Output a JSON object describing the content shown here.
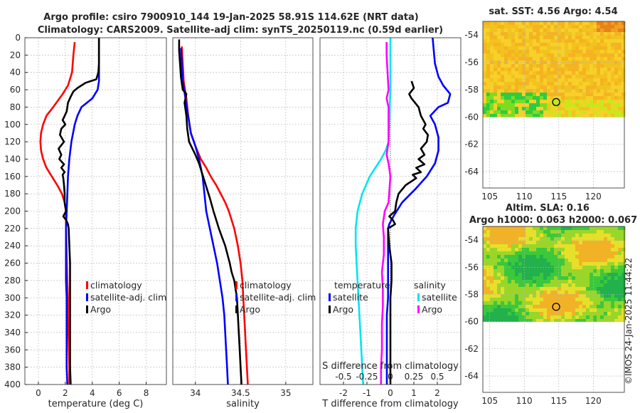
{
  "colors": {
    "climatology": "#ff0000",
    "satellite": "#0000ff",
    "argo": "#000000",
    "sal_satellite": "#00e5ee",
    "sal_argo": "#ff00ff",
    "axis": "#262626",
    "grid": "#b4b4b4"
  },
  "title": {
    "line1": "Argo profile: csiro 7900910_144 19-Jan-2025 58.91S 114.62E (NRT data)",
    "line2": "Climatology: CARS2009. Satellite-adj clim: synTS_20250119.nc (0.59d earlier)"
  },
  "watermark": "©IMOS 24-Jan-2025 11:44:22",
  "chart_data": [
    {
      "id": "temperature",
      "type": "line",
      "xlabel": "temperature (deg C)",
      "xlim": [
        -1,
        9.5
      ],
      "xticks": [
        0,
        2,
        4,
        6,
        8
      ],
      "xticklabels": [
        "0",
        "2",
        "4",
        "6",
        "8"
      ],
      "ylim": [
        0,
        400
      ],
      "yticks": [
        0,
        20,
        40,
        60,
        80,
        100,
        120,
        140,
        160,
        180,
        200,
        220,
        240,
        260,
        280,
        300,
        320,
        340,
        360,
        380,
        400
      ],
      "yticklabels": [
        "0",
        "20",
        "40",
        "60",
        "80",
        "100",
        "120",
        "140",
        "160",
        "180",
        "200",
        "220",
        "240",
        "260",
        "280",
        "300",
        "320",
        "340",
        "360",
        "380",
        "400"
      ],
      "legend": [
        "climatology",
        "satellite-adj. clim",
        "Argo"
      ],
      "series": [
        {
          "name": "climatology",
          "color": "#ff0000",
          "depth": [
            5,
            20,
            40,
            55,
            65,
            80,
            90,
            100,
            110,
            120,
            130,
            140,
            150,
            160,
            170,
            180,
            190,
            200,
            220,
            250,
            280,
            300,
            320,
            350,
            380,
            400
          ],
          "x": [
            2.7,
            2.6,
            2.5,
            2.2,
            1.8,
            1.1,
            0.6,
            0.35,
            0.2,
            0.15,
            0.2,
            0.35,
            0.6,
            1.0,
            1.4,
            1.75,
            1.95,
            2.05,
            2.05,
            2.1,
            2.15,
            2.2,
            2.2,
            2.25,
            2.3,
            2.3
          ]
        },
        {
          "name": "satellite-adj. clim",
          "color": "#0000ff",
          "depth": [
            0,
            10,
            20,
            30,
            40,
            50,
            60,
            70,
            75,
            80,
            90,
            100,
            120,
            140,
            160,
            180,
            200,
            220,
            240,
            260,
            280,
            300,
            320,
            350,
            380,
            400
          ],
          "x": [
            4.5,
            4.5,
            4.5,
            4.5,
            4.5,
            4.5,
            4.4,
            4.0,
            3.6,
            3.2,
            2.9,
            2.7,
            2.45,
            2.3,
            2.2,
            2.15,
            2.1,
            2.05,
            2.05,
            2.05,
            2.05,
            2.1,
            2.1,
            2.1,
            2.1,
            2.15
          ]
        },
        {
          "name": "Argo",
          "color": "#000000",
          "depth": [
            0,
            10,
            20,
            30,
            40,
            48,
            52,
            58,
            62,
            68,
            75,
            85,
            95,
            100,
            105,
            112,
            120,
            128,
            135,
            140,
            146,
            150,
            155,
            158,
            162,
            170,
            180,
            190,
            200,
            206,
            210,
            215,
            220,
            240,
            260,
            280,
            300,
            320,
            340,
            360,
            380,
            400
          ],
          "x": [
            4.5,
            4.5,
            4.5,
            4.5,
            4.45,
            4.3,
            3.5,
            2.9,
            2.6,
            2.4,
            2.2,
            2.1,
            1.8,
            2.0,
            1.7,
            1.6,
            1.9,
            1.5,
            1.7,
            1.55,
            1.9,
            1.7,
            1.95,
            1.8,
            1.85,
            1.9,
            1.95,
            1.95,
            2.05,
            1.85,
            2.05,
            2.2,
            2.25,
            2.3,
            2.35,
            2.35,
            2.35,
            2.35,
            2.35,
            2.35,
            2.35,
            2.4
          ]
        }
      ]
    },
    {
      "id": "salinity",
      "type": "line",
      "xlabel": "salinity",
      "xlim": [
        33.75,
        35.3
      ],
      "xticks": [
        34,
        34.5,
        35
      ],
      "xticklabels": [
        "34",
        "34.5",
        "35"
      ],
      "ylim": [
        0,
        400
      ],
      "legend": [
        "climatology",
        "satellite-adj. clim",
        "Argo"
      ],
      "series": [
        {
          "name": "climatology",
          "color": "#ff0000",
          "depth": [
            10,
            30,
            50,
            70,
            90,
            110,
            125,
            140,
            150,
            160,
            170,
            180,
            190,
            200,
            220,
            240,
            260,
            280,
            300,
            320,
            340,
            360,
            380,
            400
          ],
          "x": [
            33.85,
            33.86,
            33.87,
            33.9,
            33.92,
            33.95,
            34.0,
            34.06,
            34.12,
            34.17,
            34.23,
            34.28,
            34.33,
            34.37,
            34.43,
            34.47,
            34.5,
            34.52,
            34.53,
            34.54,
            34.55,
            34.56,
            34.57,
            34.58
          ]
        },
        {
          "name": "satellite-adj. clim",
          "color": "#0000ff",
          "depth": [
            12,
            30,
            50,
            70,
            90,
            110,
            125,
            140,
            160,
            180,
            200,
            220,
            240,
            260,
            280,
            300,
            320,
            340,
            360,
            380,
            400
          ],
          "x": [
            33.84,
            33.85,
            33.86,
            33.89,
            33.92,
            33.95,
            34.0,
            34.04,
            34.08,
            34.1,
            34.12,
            34.16,
            34.2,
            34.24,
            34.27,
            34.3,
            34.32,
            34.33,
            34.34,
            34.35,
            34.36
          ]
        },
        {
          "name": "Argo",
          "color": "#000000",
          "depth": [
            2,
            15,
            30,
            45,
            60,
            65,
            75,
            90,
            105,
            120,
            135,
            145,
            155,
            165,
            175,
            185,
            200,
            220,
            240,
            260,
            270,
            280,
            300,
            320,
            340,
            360,
            380,
            400
          ],
          "x": [
            33.82,
            33.82,
            33.83,
            33.84,
            33.86,
            33.9,
            33.88,
            33.9,
            33.91,
            33.93,
            34.0,
            34.04,
            34.07,
            34.1,
            34.13,
            34.16,
            34.2,
            34.26,
            34.33,
            34.38,
            34.4,
            34.43,
            34.46,
            34.47,
            34.48,
            34.49,
            34.5,
            34.51
          ]
        }
      ]
    },
    {
      "id": "differences",
      "type": "line",
      "xlabel": "T difference from climatology",
      "top_label": "S difference from climatology",
      "xlim": [
        -3,
        3
      ],
      "xticks": [
        -2,
        -1,
        0,
        1,
        2
      ],
      "xticklabels": [
        "-2",
        "-1",
        "0",
        "1",
        "2"
      ],
      "top_ticklabels": [
        "-0.5",
        "-0.25",
        "0",
        "0.25",
        "0.5"
      ],
      "ylim": [
        0,
        400
      ],
      "legend_temp_title": "temperature",
      "legend_sal_title": "salinity",
      "legend_temp": [
        "satellite",
        "Argo"
      ],
      "legend_sal": [
        "satellite",
        "Argo"
      ],
      "series": [
        {
          "name": "T satellite",
          "color": "#0000ff",
          "depth": [
            0,
            15,
            30,
            45,
            55,
            65,
            75,
            80,
            90,
            100,
            115,
            130,
            145,
            160,
            175,
            190,
            205,
            215,
            220,
            240,
            260,
            280,
            300,
            320,
            340,
            360,
            380,
            400
          ],
          "x": [
            1.8,
            1.85,
            1.9,
            2.05,
            2.25,
            2.55,
            2.45,
            2.05,
            1.7,
            1.9,
            2.05,
            2.05,
            1.9,
            1.55,
            1.05,
            0.5,
            0.15,
            -0.05,
            -0.1,
            -0.1,
            -0.1,
            -0.1,
            -0.1,
            -0.15,
            -0.15,
            -0.15,
            -0.15,
            -0.15
          ]
        },
        {
          "name": "T Argo",
          "color": "#000000",
          "depth": [
            50,
            58,
            65,
            70,
            80,
            90,
            100,
            105,
            112,
            120,
            128,
            135,
            140,
            146,
            150,
            155,
            158,
            162,
            170,
            180,
            190,
            200,
            206,
            210,
            215,
            220,
            240,
            260,
            280,
            300,
            320,
            340,
            360,
            380,
            400
          ],
          "x": [
            0.9,
            1.0,
            0.8,
            0.9,
            1.2,
            1.3,
            1.5,
            1.4,
            1.6,
            1.55,
            1.3,
            1.45,
            1.2,
            1.45,
            1.1,
            1.3,
            0.95,
            1.1,
            0.65,
            0.35,
            0.25,
            0.2,
            -0.05,
            0.1,
            0.2,
            -0.1,
            -0.05,
            0.05,
            0.05,
            0.0,
            0.0,
            0.0,
            0.0,
            0.0,
            0.0
          ]
        },
        {
          "name": "S satellite",
          "color": "#00e5ee",
          "depth": [
            0,
            30,
            60,
            90,
            120,
            130,
            140,
            150,
            160,
            180,
            200,
            220,
            240,
            260,
            280,
            300,
            320,
            340,
            360,
            380,
            400
          ],
          "x": [
            0.0,
            0.0,
            0.0,
            -0.01,
            -0.02,
            -0.05,
            -0.1,
            -0.16,
            -0.22,
            -0.3,
            -0.35,
            -0.37,
            -0.37,
            -0.36,
            -0.35,
            -0.34,
            -0.33,
            -0.32,
            -0.31,
            -0.3,
            -0.29
          ]
        },
        {
          "name": "S Argo",
          "color": "#ff00ff",
          "depth": [
            5,
            20,
            40,
            60,
            70,
            80,
            100,
            120,
            135,
            145,
            160,
            175,
            190,
            200,
            215,
            230,
            250,
            270,
            290,
            310,
            330,
            360,
            380,
            400
          ],
          "x": [
            -0.04,
            -0.04,
            -0.03,
            -0.02,
            -0.04,
            -0.02,
            -0.02,
            -0.02,
            -0.04,
            -0.02,
            0.0,
            -0.01,
            -0.02,
            -0.06,
            -0.08,
            -0.07,
            -0.07,
            -0.09,
            -0.08,
            -0.08,
            -0.09,
            -0.09,
            -0.1,
            -0.1
          ]
        }
      ]
    }
  ],
  "maps": [
    {
      "id": "sst-map",
      "title": "sat. SST: 4.56 Argo: 4.54",
      "xlim": [
        104,
        124.5
      ],
      "ylim": [
        -65.2,
        -53
      ],
      "xticks": [
        105,
        110,
        115,
        120
      ],
      "xticklabels": [
        "105",
        "110",
        "115",
        "120"
      ],
      "yticks": [
        -54,
        -56,
        -58,
        -60,
        -62,
        -64
      ],
      "yticklabels": [
        "-54",
        "-56",
        "-58",
        "-60",
        "-62",
        "-64"
      ],
      "data_ymin": -60,
      "marker": [
        114.62,
        -58.91
      ],
      "palette": "yellow-orange"
    },
    {
      "id": "sla-map",
      "title": "Altim. SLA: 0.16",
      "subtitle": "Argo h1000: 0.063 h2000: 0.067",
      "xlim": [
        104,
        124.5
      ],
      "ylim": [
        -65.2,
        -53
      ],
      "xticks": [
        105,
        110,
        115,
        120
      ],
      "xticklabels": [
        "105",
        "110",
        "115",
        "120"
      ],
      "yticks": [
        -54,
        -56,
        -58,
        -60,
        -62,
        -64
      ],
      "yticklabels": [
        "-54",
        "-56",
        "-58",
        "-60",
        "-62",
        "-64"
      ],
      "data_ymin": -60,
      "marker": [
        114.62,
        -58.91
      ],
      "palette": "green-yellow"
    }
  ]
}
